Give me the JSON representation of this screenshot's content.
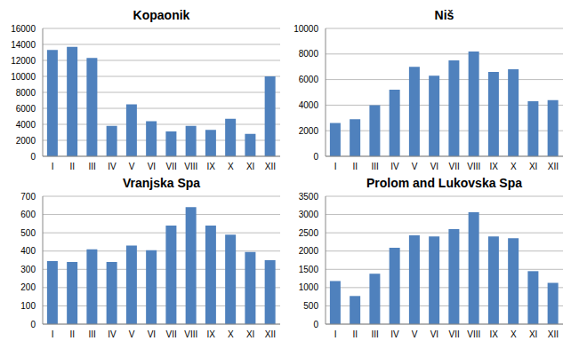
{
  "chart_data": [
    {
      "type": "bar",
      "title": "Kopaonik",
      "categories": [
        "I",
        "II",
        "III",
        "IV",
        "V",
        "VI",
        "VII",
        "VIII",
        "IX",
        "X",
        "XI",
        "XII"
      ],
      "values": [
        13300,
        13700,
        12300,
        3800,
        6500,
        4400,
        3100,
        3800,
        3300,
        4700,
        2800,
        10000
      ],
      "color": "#4f81bd",
      "ylim": [
        0,
        16000
      ],
      "yticks": [
        0,
        2000,
        4000,
        6000,
        8000,
        10000,
        12000,
        14000,
        16000
      ],
      "grid": true
    },
    {
      "type": "bar",
      "title": "Niš",
      "categories": [
        "I",
        "II",
        "III",
        "IV",
        "V",
        "VI",
        "VII",
        "VIII",
        "IX",
        "X",
        "XI",
        "XII"
      ],
      "values": [
        2600,
        2900,
        4000,
        5200,
        7000,
        6300,
        7500,
        8200,
        6600,
        6800,
        4300,
        4400
      ],
      "color": "#4f81bd",
      "ylim": [
        0,
        10000
      ],
      "yticks": [
        0,
        2000,
        4000,
        6000,
        8000,
        10000
      ],
      "grid": true
    },
    {
      "type": "bar",
      "title": "Vranjska Spa",
      "categories": [
        "I",
        "II",
        "III",
        "IV",
        "V",
        "VI",
        "VII",
        "VIII",
        "IX",
        "X",
        "XI",
        "XII"
      ],
      "values": [
        345,
        340,
        410,
        340,
        430,
        405,
        540,
        640,
        540,
        490,
        395,
        350
      ],
      "color": "#4f81bd",
      "ylim": [
        0,
        700
      ],
      "yticks": [
        0,
        100,
        200,
        300,
        400,
        500,
        600,
        700
      ],
      "grid": true
    },
    {
      "type": "bar",
      "title": "Prolom and Lukovska Spa",
      "categories": [
        "I",
        "II",
        "III",
        "IV",
        "V",
        "VI",
        "VII",
        "VIII",
        "IX",
        "X",
        "XI",
        "XII"
      ],
      "values": [
        1180,
        770,
        1380,
        2090,
        2430,
        2400,
        2600,
        3060,
        2400,
        2350,
        1450,
        1130
      ],
      "color": "#4f81bd",
      "ylim": [
        0,
        3500
      ],
      "yticks": [
        0,
        500,
        1000,
        1500,
        2000,
        2500,
        3000,
        3500
      ],
      "grid": true
    }
  ]
}
